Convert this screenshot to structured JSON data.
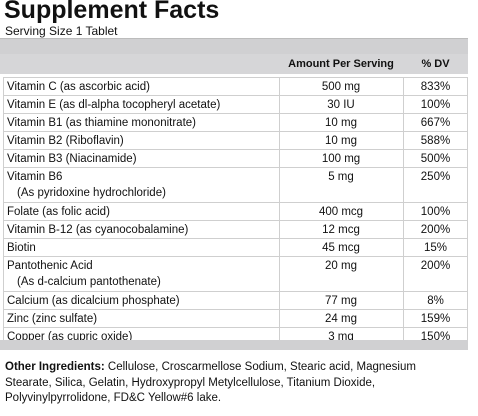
{
  "title": "Supplement Facts",
  "serving": "Serving Size 1 Tablet",
  "columns": {
    "amount": "Amount Per Serving",
    "dv": "% DV"
  },
  "rows": [
    {
      "name": "Vitamin C (as ascorbic acid)",
      "sub": "",
      "amount": "500 mg",
      "dv": "833%"
    },
    {
      "name": "Vitamin E (as dl-alpha tocopheryl acetate)",
      "sub": "",
      "amount": "30 IU",
      "dv": "100%"
    },
    {
      "name": "Vitamin B1 (as thiamine mononitrate)",
      "sub": "",
      "amount": "10 mg",
      "dv": "667%"
    },
    {
      "name": "Vitamin B2 (Riboflavin)",
      "sub": "",
      "amount": "10 mg",
      "dv": "588%"
    },
    {
      "name": "Vitamin B3 (Niacinamide)",
      "sub": "",
      "amount": "100 mg",
      "dv": "500%"
    },
    {
      "name": "Vitamin B6",
      "sub": "(As pyridoxine hydrochloride)",
      "amount": "5 mg",
      "dv": "250%"
    },
    {
      "name": "Folate (as folic acid)",
      "sub": "",
      "amount": "400 mcg",
      "dv": "100%"
    },
    {
      "name": "Vitamin B-12 (as cyanocobalamine)",
      "sub": "",
      "amount": "12 mcg",
      "dv": "200%"
    },
    {
      "name": "Biotin",
      "sub": "",
      "amount": "45 mcg",
      "dv": "15%"
    },
    {
      "name": "Pantothenic Acid",
      "sub": "(As d-calcium pantothenate)",
      "amount": "20 mg",
      "dv": "200%"
    },
    {
      "name": "Calcium (as dicalcium phosphate)",
      "sub": "",
      "amount": "77 mg",
      "dv": "8%"
    },
    {
      "name": "Zinc (zinc sulfate)",
      "sub": "",
      "amount": "24 mg",
      "dv": "159%"
    },
    {
      "name": "Copper (as cupric oxide)",
      "sub": "",
      "amount": "3 mg",
      "dv": "150%"
    }
  ],
  "ingredients": {
    "label": "Other Ingredients:",
    "text": " Cellulose, Croscarmellose Sodium, Stearic acid, Magnesium Stearate, Silica, Gelatin, Hydroxypropyl Metylcellulose, Titanium Dioxide, Polyvinylpyrrolidone, FD&C Yellow#6 lake."
  }
}
